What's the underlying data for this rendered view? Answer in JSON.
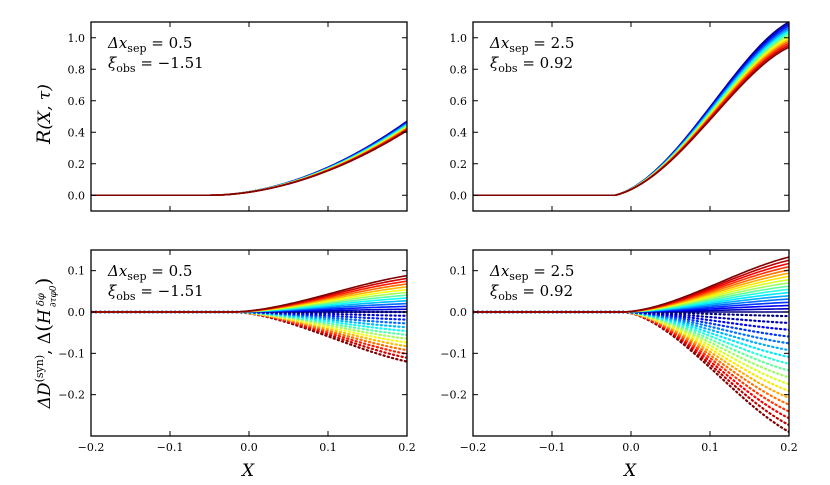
{
  "chart_data": [
    {
      "type": "line",
      "panel": "top-left",
      "ylabel": "R(X, τ)",
      "xlabel": "",
      "xlim": [
        -0.2,
        0.2
      ],
      "ylim": [
        -0.1,
        1.1
      ],
      "x_ticks": [
        -0.2,
        -0.1,
        0.0,
        0.1,
        0.2
      ],
      "y_ticks": [
        0.0,
        0.2,
        0.4,
        0.6,
        0.8,
        1.0
      ],
      "y_tick_labels": [
        "0.0",
        "0.2",
        "0.4",
        "0.6",
        "0.8",
        "1.0"
      ],
      "annotation": {
        "line1_var": "Δx",
        "line1_sub": "sep",
        "line1_val": " = 0.5",
        "line2_var": "ξ",
        "line2_sub": "obs",
        "line2_val": " = −1.51"
      },
      "family": {
        "kind": "rise",
        "n_curves": 14,
        "onset_x": -0.05,
        "end_min": 0.41,
        "end_max": 0.47,
        "style": "solid"
      }
    },
    {
      "type": "line",
      "panel": "top-right",
      "ylabel": "",
      "xlabel": "",
      "xlim": [
        -0.2,
        0.2
      ],
      "ylim": [
        -0.1,
        1.1
      ],
      "x_ticks": [
        -0.2,
        -0.1,
        0.0,
        0.1,
        0.2
      ],
      "y_ticks": [
        0.0,
        0.2,
        0.4,
        0.6,
        0.8,
        1.0
      ],
      "y_tick_labels": [
        "0.0",
        "0.2",
        "0.4",
        "0.6",
        "0.8",
        "1.0"
      ],
      "annotation": {
        "line1_var": "Δx",
        "line1_sub": "sep",
        "line1_val": " = 2.5",
        "line2_var": "ξ",
        "line2_sub": "obs",
        "line2_val": " = 0.92"
      },
      "family": {
        "kind": "sigmoid",
        "n_curves": 14,
        "onset_x": -0.02,
        "end_min": 0.94,
        "end_max": 1.1,
        "style": "solid"
      }
    },
    {
      "type": "line",
      "panel": "bottom-left",
      "ylabel": "ΔD(syn), Δ(H δφ/∂τφ0)",
      "xlabel": "X",
      "xlim": [
        -0.2,
        0.2
      ],
      "ylim": [
        -0.3,
        0.15
      ],
      "x_ticks": [
        -0.2,
        -0.1,
        0.0,
        0.1,
        0.2
      ],
      "x_tick_labels": [
        "−0.2",
        "−0.1",
        "0.0",
        "0.1",
        "0.2"
      ],
      "y_ticks": [
        -0.2,
        -0.1,
        0.0,
        0.1
      ],
      "y_tick_labels": [
        "−0.2",
        "−0.1",
        "0.0",
        "0.1"
      ],
      "annotation": {
        "line1_var": "Δx",
        "line1_sub": "sep",
        "line1_val": " = 0.5",
        "line2_var": "ξ",
        "line2_sub": "obs",
        "line2_val": " = −1.51"
      },
      "solid_family": {
        "n_curves": 14,
        "onset_x": -0.02,
        "end_min": 0.0,
        "end_max": 0.088
      },
      "dotted_family": {
        "n_curves": 14,
        "onset_x": -0.02,
        "end_min": -0.12,
        "end_max": 0.0
      }
    },
    {
      "type": "line",
      "panel": "bottom-right",
      "ylabel": "",
      "xlabel": "X",
      "xlim": [
        -0.2,
        0.2
      ],
      "ylim": [
        -0.3,
        0.15
      ],
      "x_ticks": [
        -0.2,
        -0.1,
        0.0,
        0.1,
        0.2
      ],
      "x_tick_labels": [
        "−0.2",
        "−0.1",
        "0.0",
        "0.1",
        "0.2"
      ],
      "y_ticks": [
        -0.2,
        -0.1,
        0.0,
        0.1
      ],
      "y_tick_labels": [
        "−0.2",
        "−0.1",
        "0.0",
        "0.1"
      ],
      "annotation": {
        "line1_var": "Δx",
        "line1_sub": "sep",
        "line1_val": " = 2.5",
        "line2_var": "ξ",
        "line2_sub": "obs",
        "line2_val": " = 0.92"
      },
      "solid_family": {
        "n_curves": 18,
        "onset_x": -0.01,
        "end_min": 0.0,
        "end_max": 0.133
      },
      "dotted_family": {
        "n_curves": 18,
        "onset_x": -0.01,
        "end_min": -0.29,
        "end_max": -0.01
      }
    }
  ],
  "colormap": {
    "name": "jet",
    "stops": [
      "#00007f",
      "#0000ff",
      "#007fff",
      "#00ffff",
      "#7fff7f",
      "#ffff00",
      "#ff7f00",
      "#ff0000",
      "#7f0000"
    ]
  },
  "labels": {
    "ylabel_top_main": "R",
    "ylabel_top_args": "(X, τ)",
    "ylabel_bottom_a": "ΔD",
    "ylabel_bottom_a_sup": "(syn)",
    "ylabel_bottom_b": ",  Δ",
    "ylabel_bottom_c": "H",
    "ylabel_bottom_frac_num": "δφ",
    "ylabel_bottom_frac_den": "∂τφ0",
    "xlabel": "X"
  }
}
